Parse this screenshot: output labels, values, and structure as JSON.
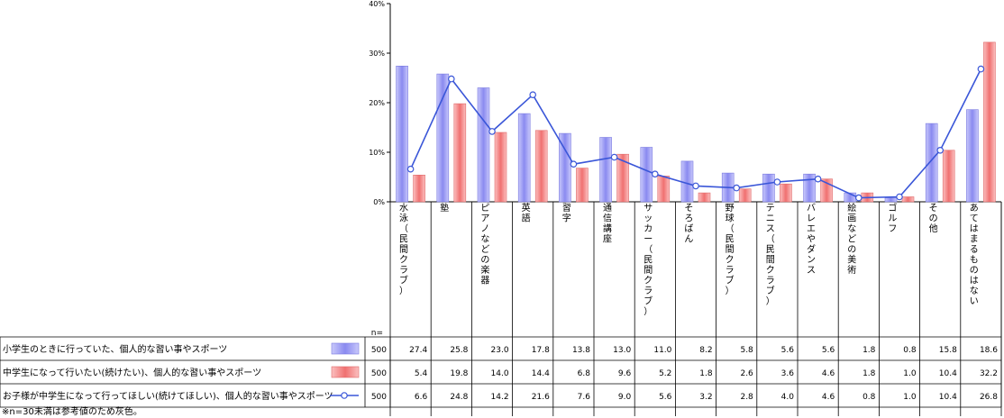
{
  "chart_data": {
    "type": "bar",
    "y_unit_ticks": [
      "0%",
      "10%",
      "20%",
      "30%",
      "40%"
    ],
    "ylim": [
      0,
      40
    ],
    "n_header": "n=",
    "categories": [
      "水泳（民間クラブ）",
      "塾",
      "ピアノなどの楽器",
      "英語",
      "習字",
      "通信講座",
      "サッカー（民間クラブ）",
      "そろばん",
      "野球（民間クラブ）",
      "テニス（民間クラブ）",
      "バレエやダンス",
      "絵画などの美術",
      "ゴルフ",
      "その他",
      "あてはまるものはない"
    ],
    "series": [
      {
        "name": "小学生のときに行っていた、個人的な習い事やスポーツ",
        "type": "bar",
        "color": "#8f8ff0",
        "n": "500",
        "values": [
          27.4,
          25.8,
          23.0,
          17.8,
          13.8,
          13.0,
          11.0,
          8.2,
          5.8,
          5.6,
          5.6,
          1.8,
          0.8,
          15.8,
          18.6
        ],
        "labels": [
          "27.4",
          "25.8",
          "23.0",
          "17.8",
          "13.8",
          "13.0",
          "11.0",
          "8.2",
          "5.8",
          "5.6",
          "5.6",
          "1.8",
          "0.8",
          "15.8",
          "18.6"
        ]
      },
      {
        "name": "中学生になって行いたい(続けたい)、個人的な習い事やスポーツ",
        "type": "bar",
        "color": "#f07c7c",
        "n": "500",
        "values": [
          5.4,
          19.8,
          14.0,
          14.4,
          6.8,
          9.6,
          5.2,
          1.8,
          2.6,
          3.6,
          4.6,
          1.8,
          1.0,
          10.4,
          32.2
        ],
        "labels": [
          "5.4",
          "19.8",
          "14.0",
          "14.4",
          "6.8",
          "9.6",
          "5.2",
          "1.8",
          "2.6",
          "3.6",
          "4.6",
          "1.8",
          "1.0",
          "10.4",
          "32.2"
        ]
      },
      {
        "name": "お子様が中学生になって行ってほしい(続けてほしい)、個人的な習い事やスポーツ",
        "type": "line",
        "color": "#3a56d8",
        "n": "500",
        "values": [
          6.6,
          24.8,
          14.2,
          21.6,
          7.6,
          9.0,
          5.6,
          3.2,
          2.8,
          4.0,
          4.6,
          0.8,
          1.0,
          10.4,
          26.8
        ],
        "labels": [
          "6.6",
          "24.8",
          "14.2",
          "21.6",
          "7.6",
          "9.0",
          "5.6",
          "3.2",
          "2.8",
          "4.0",
          "4.6",
          "0.8",
          "1.0",
          "10.4",
          "26.8"
        ]
      }
    ],
    "footnote": "※n=30未満は参考値のため灰色。"
  }
}
